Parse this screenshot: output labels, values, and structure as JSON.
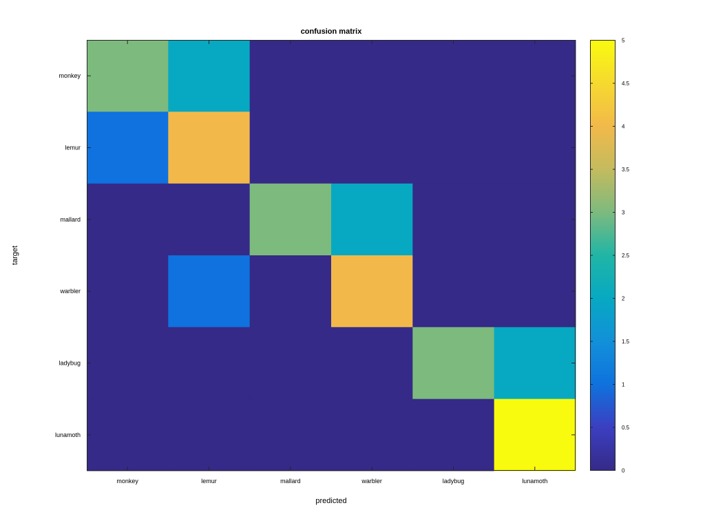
{
  "chart_data": {
    "type": "heatmap",
    "title": "confusion matrix",
    "xlabel": "predicted",
    "ylabel": "target",
    "x_categories": [
      "monkey",
      "lemur",
      "mallard",
      "warbler",
      "ladybug",
      "lunamoth"
    ],
    "y_categories": [
      "monkey",
      "lemur",
      "mallard",
      "warbler",
      "ladybug",
      "lunamoth"
    ],
    "values": [
      [
        3,
        2,
        0,
        0,
        0,
        0
      ],
      [
        1,
        4,
        0,
        0,
        0,
        0
      ],
      [
        0,
        0,
        3,
        2,
        0,
        0
      ],
      [
        0,
        1,
        0,
        4,
        0,
        0
      ],
      [
        0,
        0,
        0,
        0,
        3,
        2
      ],
      [
        0,
        0,
        0,
        0,
        0,
        5
      ]
    ],
    "colorbar": {
      "range": [
        0,
        5
      ],
      "ticks": [
        0,
        0.5,
        1,
        1.5,
        2,
        2.5,
        3,
        3.5,
        4,
        4.5,
        5
      ],
      "tick_labels": [
        "0",
        "0.5",
        "1",
        "1.5",
        "2",
        "2.5",
        "3",
        "3.5",
        "4",
        "4.5",
        "5"
      ],
      "colormap": "parula",
      "colors": {
        "0": "#352a87",
        "1": "#0f72de",
        "2": "#07a9c2",
        "3": "#7dba7e",
        "4": "#f2b94a",
        "5": "#f9fb0e"
      }
    }
  }
}
